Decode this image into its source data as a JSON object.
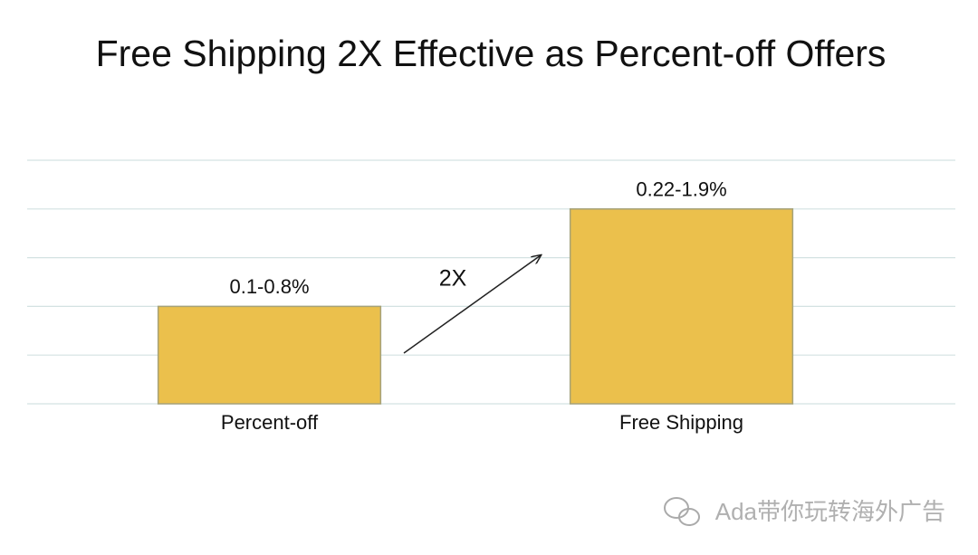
{
  "chart_data": {
    "type": "bar",
    "title": "Free Shipping 2X Effective as Percent-off Offers",
    "categories": [
      "Percent-off",
      "Free Shipping"
    ],
    "values": [
      2,
      4
    ],
    "bar_labels": [
      "0.1-0.8%",
      "0.22-1.9%"
    ],
    "color": "#ebc04c",
    "ylim": [
      0,
      5
    ],
    "yticks": [
      0,
      1,
      2,
      3,
      4,
      5
    ],
    "grid": true,
    "annotation": "2X",
    "watermark": "Ada带你玩转海外广告"
  }
}
